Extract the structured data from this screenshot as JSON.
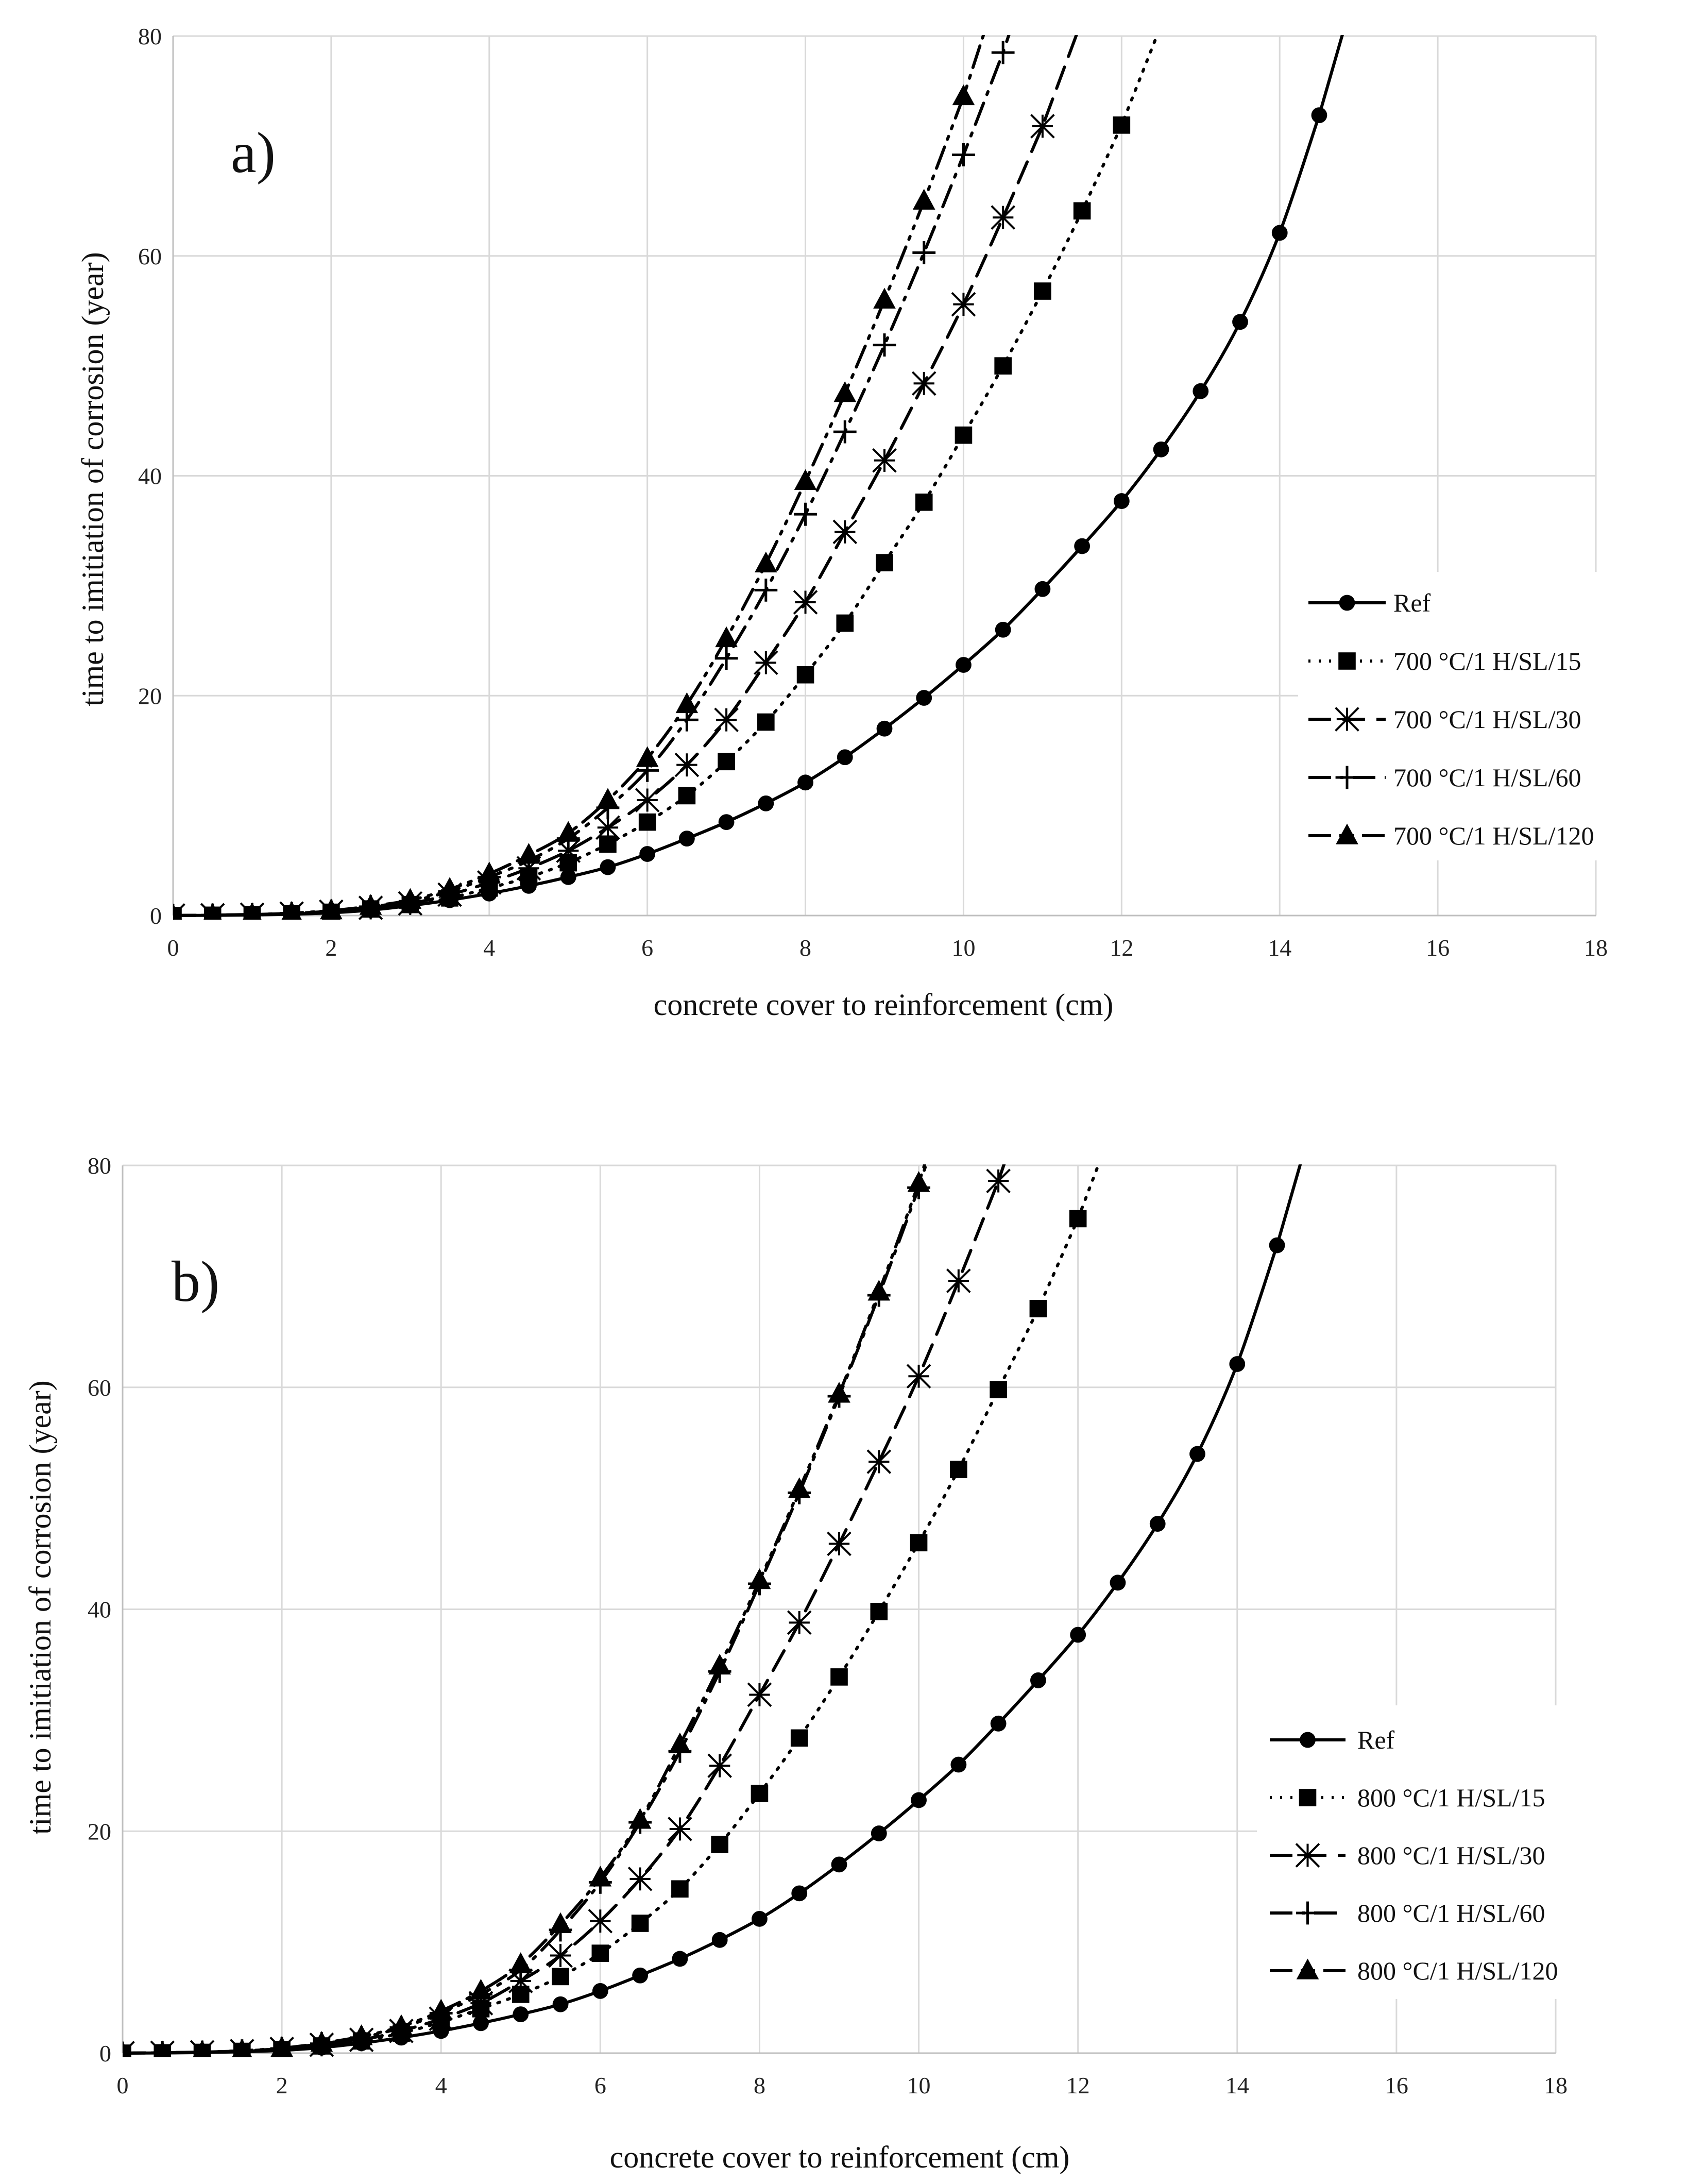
{
  "chart_data": [
    {
      "type": "line",
      "panel_label": "a)",
      "xlabel": "concrete cover to reinforcement   (cm)",
      "ylabel": "time to imitiation of corrosion (year)",
      "xlim": [
        0,
        18
      ],
      "ylim": [
        0,
        80
      ],
      "xticks": [
        0,
        2,
        4,
        6,
        8,
        10,
        12,
        14,
        16,
        18
      ],
      "yticks": [
        0,
        20,
        40,
        60,
        80
      ],
      "grid": true,
      "legend_position": "middle-right",
      "series": [
        {
          "name": "Ref",
          "marker": "circle",
          "dash": "solid",
          "x": [
            0,
            0.5,
            1,
            1.5,
            2,
            2.5,
            3,
            3.5,
            4,
            4.5,
            5,
            5.5,
            6,
            6.5,
            7,
            7.5,
            8,
            8.5,
            9,
            9.5,
            10,
            10.5,
            11,
            11.5,
            12,
            12.5,
            13,
            13.5,
            14,
            14.5
          ],
          "y": [
            0,
            0.02,
            0.05,
            0.12,
            0.25,
            0.5,
            0.9,
            1.4,
            2.0,
            2.7,
            3.5,
            4.4,
            5.6,
            7.0,
            8.5,
            10.2,
            12.1,
            14.4,
            17.0,
            19.8,
            22.8,
            26.0,
            29.7,
            33.6,
            37.7,
            42.4,
            47.7,
            54.0,
            62.1,
            72.8
          ]
        },
        {
          "name": "700 °C/1 H/SL/15",
          "marker": "square",
          "dash": "dotted",
          "x": [
            0,
            0.5,
            1,
            1.5,
            2,
            2.5,
            3,
            3.5,
            4,
            4.5,
            5,
            5.5,
            6,
            6.5,
            7,
            7.5,
            8,
            8.5,
            9,
            9.5,
            10,
            10.5,
            11,
            11.5,
            12
          ],
          "y": [
            0,
            0.03,
            0.07,
            0.15,
            0.3,
            0.6,
            1.0,
            1.6,
            2.5,
            3.5,
            4.8,
            6.5,
            8.5,
            10.9,
            14.0,
            17.6,
            21.9,
            26.6,
            32.1,
            37.6,
            43.7,
            50.0,
            56.8,
            64.1,
            71.9
          ]
        },
        {
          "name": "700 °C/1 H/SL/30",
          "marker": "asterisk",
          "dash": "dashed",
          "x": [
            0,
            0.5,
            1,
            1.5,
            2,
            2.5,
            3,
            3.5,
            4,
            4.5,
            5,
            5.5,
            6,
            6.5,
            7,
            7.5,
            8,
            8.5,
            9,
            9.5,
            10,
            10.5,
            11
          ],
          "y": [
            0,
            0.03,
            0.08,
            0.18,
            0.35,
            0.7,
            1.1,
            1.9,
            3.0,
            4.3,
            5.9,
            8.0,
            10.5,
            13.7,
            17.8,
            23.0,
            28.5,
            34.9,
            41.4,
            48.4,
            55.6,
            63.5,
            71.8
          ]
        },
        {
          "name": "700 °C/1 H/SL/60",
          "marker": "plus",
          "dash": "dash-dot",
          "x": [
            0,
            0.5,
            1,
            1.5,
            2,
            2.5,
            3,
            3.5,
            4,
            4.5,
            5,
            5.5,
            6,
            6.5,
            7,
            7.5,
            8,
            8.5,
            9,
            9.5,
            10,
            10.5
          ],
          "y": [
            0,
            0.04,
            0.09,
            0.2,
            0.4,
            0.8,
            1.3,
            2.2,
            3.5,
            5.0,
            7.0,
            9.8,
            13.2,
            17.8,
            23.4,
            29.6,
            36.5,
            44.0,
            51.9,
            60.3,
            69.2,
            78.5
          ]
        },
        {
          "name": "700 °C/1 H/SL/120",
          "marker": "triangle",
          "dash": "dash-dot-dot",
          "x": [
            0,
            0.5,
            1,
            1.5,
            2,
            2.5,
            3,
            3.5,
            4,
            4.5,
            5,
            5.5,
            6,
            6.5,
            7,
            7.5,
            8,
            8.5,
            9,
            9.5,
            10
          ],
          "y": [
            0,
            0.04,
            0.1,
            0.22,
            0.45,
            0.85,
            1.4,
            2.4,
            3.8,
            5.5,
            7.5,
            10.5,
            14.3,
            19.2,
            25.2,
            32.0,
            39.5,
            47.5,
            56.0,
            65.0,
            74.5
          ]
        }
      ]
    },
    {
      "type": "line",
      "panel_label": "b)",
      "xlabel": "concrete cover to reinforcement   (cm)",
      "ylabel": "time to imitiation of corrosion (year)",
      "xlim": [
        0,
        18
      ],
      "ylim": [
        0,
        80
      ],
      "xticks": [
        0,
        2,
        4,
        6,
        8,
        10,
        12,
        14,
        16,
        18
      ],
      "yticks": [
        0,
        20,
        40,
        60,
        80
      ],
      "grid": true,
      "legend_position": "bottom-right",
      "series": [
        {
          "name": "Ref",
          "marker": "circle",
          "dash": "solid",
          "x": [
            0,
            0.5,
            1,
            1.5,
            2,
            2.5,
            3,
            3.5,
            4,
            4.5,
            5,
            5.5,
            6,
            6.5,
            7,
            7.5,
            8,
            8.5,
            9,
            9.5,
            10,
            10.5,
            11,
            11.5,
            12,
            12.5,
            13,
            13.5,
            14,
            14.5
          ],
          "y": [
            0,
            0.02,
            0.05,
            0.12,
            0.25,
            0.5,
            0.9,
            1.4,
            2.0,
            2.7,
            3.5,
            4.4,
            5.6,
            7.0,
            8.5,
            10.2,
            12.1,
            14.4,
            17.0,
            19.8,
            22.8,
            26.0,
            29.7,
            33.6,
            37.7,
            42.4,
            47.7,
            54.0,
            62.1,
            72.8
          ]
        },
        {
          "name": "800 °C/1 H/SL/15",
          "marker": "square",
          "dash": "dotted",
          "x": [
            0,
            0.5,
            1,
            1.5,
            2,
            2.5,
            3,
            3.5,
            4,
            4.5,
            5,
            5.5,
            6,
            6.5,
            7,
            7.5,
            8,
            8.5,
            9,
            9.5,
            10,
            10.5,
            11,
            11.5,
            12
          ],
          "y": [
            0,
            0.03,
            0.07,
            0.16,
            0.32,
            0.65,
            1.1,
            1.8,
            2.8,
            4.0,
            5.3,
            6.9,
            9.0,
            11.7,
            14.8,
            18.8,
            23.4,
            28.4,
            33.9,
            39.8,
            46.0,
            52.6,
            59.8,
            67.1,
            75.2
          ]
        },
        {
          "name": "800 °C/1 H/SL/30",
          "marker": "asterisk",
          "dash": "dashed",
          "x": [
            0,
            0.5,
            1,
            1.5,
            2,
            2.5,
            3,
            3.5,
            4,
            4.5,
            5,
            5.5,
            6,
            6.5,
            7,
            7.5,
            8,
            8.5,
            9,
            9.5,
            10,
            10.5,
            11
          ],
          "y": [
            0,
            0.03,
            0.08,
            0.18,
            0.38,
            0.75,
            1.2,
            2.0,
            3.1,
            4.5,
            6.5,
            8.8,
            11.9,
            15.7,
            20.2,
            25.9,
            32.3,
            38.8,
            45.9,
            53.3,
            61.0,
            69.6,
            78.6
          ]
        },
        {
          "name": "800 °C/1 H/SL/60",
          "marker": "plus",
          "dash": "dash-dot",
          "x": [
            0,
            0.5,
            1,
            1.5,
            2,
            2.5,
            3,
            3.5,
            4,
            4.5,
            5,
            5.5,
            6,
            6.5,
            7,
            7.5,
            8,
            8.5,
            9,
            9.5,
            10
          ],
          "y": [
            0,
            0.04,
            0.09,
            0.2,
            0.42,
            0.85,
            1.4,
            2.3,
            3.6,
            5.3,
            7.5,
            11.1,
            15.4,
            20.8,
            27.2,
            34.4,
            42.3,
            50.5,
            59.2,
            68.3,
            78.0
          ]
        },
        {
          "name": "800 °C/1 H/SL/120",
          "marker": "triangle",
          "dash": "dash-dot-dot",
          "x": [
            0,
            0.5,
            1,
            1.5,
            2,
            2.5,
            3,
            3.5,
            4,
            4.5,
            5,
            5.5,
            6,
            6.5,
            7,
            7.5,
            8,
            8.5,
            9,
            9.5,
            10
          ],
          "y": [
            0,
            0.04,
            0.1,
            0.22,
            0.45,
            0.9,
            1.5,
            2.4,
            3.8,
            5.6,
            8.0,
            11.6,
            15.8,
            21.0,
            27.8,
            34.9,
            42.6,
            50.8,
            59.4,
            68.6,
            78.4
          ]
        }
      ]
    }
  ]
}
